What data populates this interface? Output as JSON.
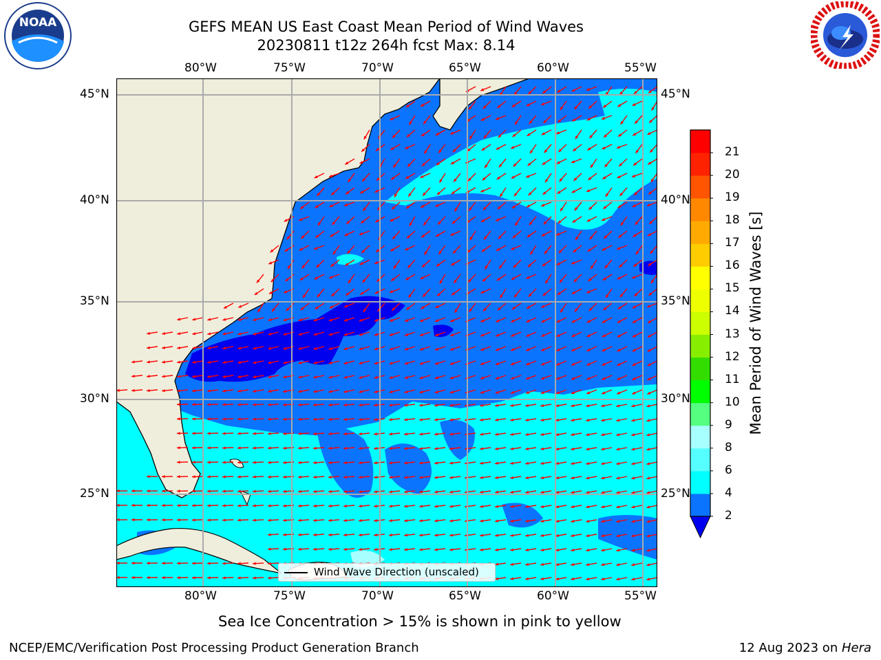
{
  "title": {
    "line1": "GEFS MEAN US East Coast Mean Period of Wind Waves",
    "line2": "20230811 t12z 264h fcst   Max: 8.14"
  },
  "logos": {
    "left": "NOAA",
    "right": "NATIONAL WEATHER SERVICE"
  },
  "map": {
    "lon_labels": [
      "80°W",
      "75°W",
      "70°W",
      "65°W",
      "60°W",
      "55°W"
    ],
    "lat_labels": [
      "45°N",
      "40°N",
      "35°N",
      "30°N",
      "25°N"
    ],
    "legend_label": "Wind Wave Direction (unscaled)",
    "colors": {
      "land": "#efeedc",
      "sea_deep": "#0000ee",
      "sea_mid": "#0a74ff",
      "sea_cyan": "#00ffff",
      "sea_light": "#56ffff",
      "arrows": "#ff0000",
      "grid": "#aaaaaa"
    }
  },
  "colorbar": {
    "label": "Mean Period of Wind Waves [s]",
    "ticks": [
      "2",
      "4",
      "6",
      "8",
      "9",
      "10",
      "11",
      "12",
      "13",
      "14",
      "15",
      "16",
      "17",
      "18",
      "19",
      "20",
      "21"
    ],
    "colors": [
      "#0000ee",
      "#0a74ff",
      "#00ffff",
      "#56ffff",
      "#a8ffff",
      "#55ff80",
      "#00ff00",
      "#33dd00",
      "#88ee00",
      "#ccff00",
      "#eeff00",
      "#ffff00",
      "#ffcc00",
      "#ffaa00",
      "#ff8800",
      "#ff5500",
      "#ff2200",
      "#ff0000"
    ]
  },
  "subtitle": "Sea Ice Concentration > 15% is shown in pink to yellow",
  "footer": {
    "left": "NCEP/EMC/Verification Post Processing Product Generation Branch",
    "right_date": "12 Aug 2023 on ",
    "right_host": "Hera"
  }
}
